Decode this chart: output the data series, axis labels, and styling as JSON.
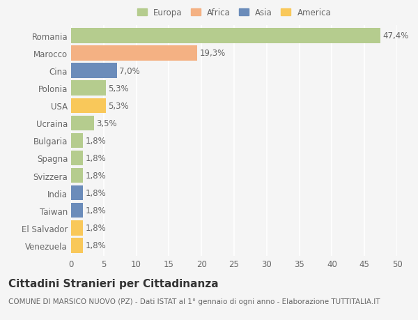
{
  "countries": [
    "Romania",
    "Marocco",
    "Cina",
    "Polonia",
    "USA",
    "Ucraina",
    "Bulgaria",
    "Spagna",
    "Svizzera",
    "India",
    "Taiwan",
    "El Salvador",
    "Venezuela"
  ],
  "values": [
    47.4,
    19.3,
    7.0,
    5.3,
    5.3,
    3.5,
    1.8,
    1.8,
    1.8,
    1.8,
    1.8,
    1.8,
    1.8
  ],
  "labels": [
    "47,4%",
    "19,3%",
    "7,0%",
    "5,3%",
    "5,3%",
    "3,5%",
    "1,8%",
    "1,8%",
    "1,8%",
    "1,8%",
    "1,8%",
    "1,8%",
    "1,8%"
  ],
  "continents": [
    "Europa",
    "Africa",
    "Asia",
    "Europa",
    "America",
    "Europa",
    "Europa",
    "Europa",
    "Europa",
    "Asia",
    "Asia",
    "America",
    "America"
  ],
  "colors": {
    "Europa": "#b5cc8e",
    "Africa": "#f4b183",
    "Asia": "#6b8cba",
    "America": "#f9c85a"
  },
  "legend_order": [
    "Europa",
    "Africa",
    "Asia",
    "America"
  ],
  "xlim": [
    0,
    50
  ],
  "xticks": [
    0,
    5,
    10,
    15,
    20,
    25,
    30,
    35,
    40,
    45,
    50
  ],
  "title": "Cittadini Stranieri per Cittadinanza",
  "subtitle": "COMUNE DI MARSICO NUOVO (PZ) - Dati ISTAT al 1° gennaio di ogni anno - Elaborazione TUTTITALIA.IT",
  "background_color": "#f5f5f5",
  "bar_height": 0.85,
  "grid_color": "#ffffff",
  "text_color": "#666666",
  "label_fontsize": 8.5,
  "title_fontsize": 11,
  "subtitle_fontsize": 7.5
}
